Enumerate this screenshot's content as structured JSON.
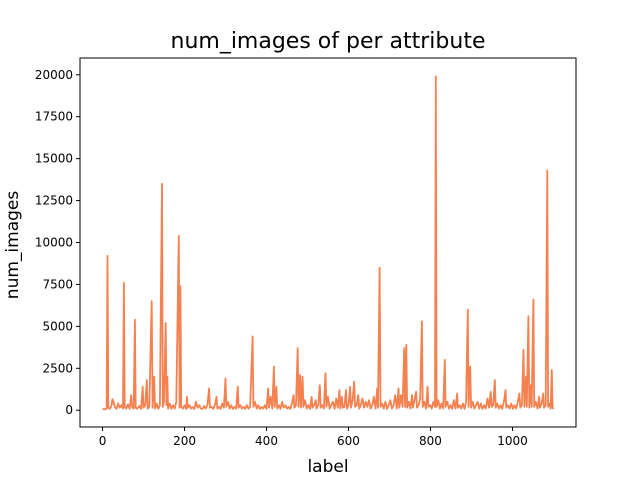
{
  "chart_data": {
    "type": "line",
    "title": "num_images of per attribute",
    "xlabel": "label",
    "ylabel": "num_images",
    "xlim": [
      -55,
      1155
    ],
    "ylim": [
      -1000,
      21000
    ],
    "x_ticks": [
      0,
      200,
      400,
      600,
      800,
      1000
    ],
    "y_ticks": [
      0,
      2500,
      5000,
      7500,
      10000,
      12500,
      15000,
      17500,
      20000
    ],
    "grid": false,
    "legend": "none",
    "series": [
      {
        "color": "#f4814f",
        "points": [
          [
            0,
            80
          ],
          [
            5,
            60
          ],
          [
            10,
            100
          ],
          [
            12,
            9200
          ],
          [
            14,
            150
          ],
          [
            18,
            80
          ],
          [
            22,
            300
          ],
          [
            24,
            650
          ],
          [
            27,
            500
          ],
          [
            30,
            200
          ],
          [
            34,
            80
          ],
          [
            38,
            400
          ],
          [
            42,
            150
          ],
          [
            46,
            300
          ],
          [
            50,
            100
          ],
          [
            52,
            7600
          ],
          [
            54,
            200
          ],
          [
            58,
            100
          ],
          [
            62,
            350
          ],
          [
            66,
            80
          ],
          [
            70,
            900
          ],
          [
            72,
            200
          ],
          [
            76,
            100
          ],
          [
            79,
            5400
          ],
          [
            81,
            150
          ],
          [
            85,
            100
          ],
          [
            90,
            250
          ],
          [
            94,
            80
          ],
          [
            98,
            1400
          ],
          [
            100,
            150
          ],
          [
            104,
            300
          ],
          [
            108,
            1800
          ],
          [
            110,
            100
          ],
          [
            114,
            200
          ],
          [
            120,
            6500
          ],
          [
            122,
            150
          ],
          [
            126,
            2000
          ],
          [
            128,
            100
          ],
          [
            132,
            400
          ],
          [
            136,
            80
          ],
          [
            140,
            300
          ],
          [
            145,
            13500
          ],
          [
            147,
            200
          ],
          [
            150,
            500
          ],
          [
            154,
            5200
          ],
          [
            156,
            300
          ],
          [
            158,
            2000
          ],
          [
            160,
            100
          ],
          [
            164,
            400
          ],
          [
            168,
            80
          ],
          [
            172,
            300
          ],
          [
            176,
            100
          ],
          [
            180,
            500
          ],
          [
            186,
            10400
          ],
          [
            188,
            150
          ],
          [
            190,
            7400
          ],
          [
            192,
            200
          ],
          [
            196,
            100
          ],
          [
            200,
            300
          ],
          [
            204,
            80
          ],
          [
            206,
            800
          ],
          [
            208,
            150
          ],
          [
            212,
            300
          ],
          [
            216,
            100
          ],
          [
            220,
            200
          ],
          [
            224,
            80
          ],
          [
            228,
            500
          ],
          [
            232,
            150
          ],
          [
            236,
            300
          ],
          [
            240,
            100
          ],
          [
            244,
            80
          ],
          [
            248,
            250
          ],
          [
            252,
            100
          ],
          [
            256,
            350
          ],
          [
            260,
            1300
          ],
          [
            262,
            150
          ],
          [
            266,
            200
          ],
          [
            270,
            80
          ],
          [
            274,
            300
          ],
          [
            278,
            800
          ],
          [
            280,
            100
          ],
          [
            284,
            200
          ],
          [
            288,
            80
          ],
          [
            292,
            400
          ],
          [
            296,
            150
          ],
          [
            300,
            1900
          ],
          [
            302,
            200
          ],
          [
            306,
            500
          ],
          [
            310,
            100
          ],
          [
            314,
            300
          ],
          [
            318,
            80
          ],
          [
            322,
            200
          ],
          [
            326,
            100
          ],
          [
            330,
            1400
          ],
          [
            332,
            150
          ],
          [
            336,
            300
          ],
          [
            340,
            100
          ],
          [
            344,
            200
          ],
          [
            348,
            80
          ],
          [
            352,
            300
          ],
          [
            356,
            100
          ],
          [
            360,
            200
          ],
          [
            366,
            4400
          ],
          [
            368,
            200
          ],
          [
            372,
            500
          ],
          [
            376,
            100
          ],
          [
            380,
            300
          ],
          [
            384,
            80
          ],
          [
            388,
            200
          ],
          [
            392,
            100
          ],
          [
            396,
            300
          ],
          [
            400,
            80
          ],
          [
            404,
            1300
          ],
          [
            406,
            150
          ],
          [
            410,
            800
          ],
          [
            414,
            100
          ],
          [
            418,
            2600
          ],
          [
            420,
            200
          ],
          [
            424,
            1400
          ],
          [
            426,
            100
          ],
          [
            430,
            300
          ],
          [
            434,
            80
          ],
          [
            438,
            500
          ],
          [
            442,
            150
          ],
          [
            446,
            300
          ],
          [
            450,
            100
          ],
          [
            454,
            200
          ],
          [
            458,
            80
          ],
          [
            462,
            400
          ],
          [
            466,
            900
          ],
          [
            468,
            150
          ],
          [
            472,
            300
          ],
          [
            476,
            3700
          ],
          [
            478,
            200
          ],
          [
            482,
            2100
          ],
          [
            484,
            150
          ],
          [
            488,
            2000
          ],
          [
            490,
            200
          ],
          [
            494,
            600
          ],
          [
            498,
            100
          ],
          [
            502,
            300
          ],
          [
            506,
            80
          ],
          [
            510,
            800
          ],
          [
            512,
            150
          ],
          [
            516,
            300
          ],
          [
            520,
            600
          ],
          [
            522,
            100
          ],
          [
            526,
            300
          ],
          [
            530,
            1500
          ],
          [
            532,
            150
          ],
          [
            536,
            300
          ],
          [
            540,
            100
          ],
          [
            544,
            2200
          ],
          [
            546,
            200
          ],
          [
            550,
            800
          ],
          [
            554,
            100
          ],
          [
            558,
            300
          ],
          [
            562,
            500
          ],
          [
            566,
            80
          ],
          [
            570,
            700
          ],
          [
            574,
            150
          ],
          [
            578,
            1200
          ],
          [
            580,
            100
          ],
          [
            584,
            800
          ],
          [
            586,
            150
          ],
          [
            590,
            200
          ],
          [
            594,
            1200
          ],
          [
            596,
            100
          ],
          [
            600,
            300
          ],
          [
            604,
            1400
          ],
          [
            606,
            150
          ],
          [
            610,
            600
          ],
          [
            614,
            1700
          ],
          [
            616,
            200
          ],
          [
            620,
            300
          ],
          [
            624,
            900
          ],
          [
            626,
            100
          ],
          [
            630,
            300
          ],
          [
            634,
            700
          ],
          [
            638,
            150
          ],
          [
            642,
            500
          ],
          [
            646,
            200
          ],
          [
            650,
            600
          ],
          [
            654,
            100
          ],
          [
            658,
            300
          ],
          [
            662,
            800
          ],
          [
            666,
            100
          ],
          [
            670,
            1300
          ],
          [
            672,
            150
          ],
          [
            676,
            8500
          ],
          [
            678,
            200
          ],
          [
            682,
            400
          ],
          [
            686,
            100
          ],
          [
            690,
            500
          ],
          [
            694,
            80
          ],
          [
            698,
            300
          ],
          [
            702,
            600
          ],
          [
            706,
            100
          ],
          [
            710,
            300
          ],
          [
            714,
            900
          ],
          [
            718,
            100
          ],
          [
            722,
            1300
          ],
          [
            724,
            150
          ],
          [
            728,
            900
          ],
          [
            732,
            200
          ],
          [
            736,
            3700
          ],
          [
            738,
            200
          ],
          [
            741,
            3900
          ],
          [
            743,
            150
          ],
          [
            747,
            500
          ],
          [
            751,
            100
          ],
          [
            755,
            900
          ],
          [
            757,
            150
          ],
          [
            761,
            600
          ],
          [
            765,
            1100
          ],
          [
            767,
            150
          ],
          [
            771,
            300
          ],
          [
            775,
            700
          ],
          [
            779,
            5300
          ],
          [
            781,
            200
          ],
          [
            785,
            500
          ],
          [
            789,
            100
          ],
          [
            793,
            1400
          ],
          [
            795,
            200
          ],
          [
            799,
            300
          ],
          [
            803,
            100
          ],
          [
            807,
            500
          ],
          [
            811,
            200
          ],
          [
            813,
            19900
          ],
          [
            815,
            200
          ],
          [
            819,
            600
          ],
          [
            823,
            100
          ],
          [
            827,
            400
          ],
          [
            831,
            100
          ],
          [
            835,
            3000
          ],
          [
            837,
            200
          ],
          [
            841,
            500
          ],
          [
            845,
            100
          ],
          [
            849,
            300
          ],
          [
            853,
            80
          ],
          [
            857,
            600
          ],
          [
            861,
            100
          ],
          [
            865,
            1000
          ],
          [
            867,
            150
          ],
          [
            871,
            300
          ],
          [
            875,
            100
          ],
          [
            879,
            400
          ],
          [
            883,
            80
          ],
          [
            887,
            500
          ],
          [
            891,
            6000
          ],
          [
            893,
            200
          ],
          [
            897,
            2600
          ],
          [
            899,
            150
          ],
          [
            903,
            500
          ],
          [
            907,
            100
          ],
          [
            911,
            300
          ],
          [
            915,
            500
          ],
          [
            919,
            100
          ],
          [
            923,
            400
          ],
          [
            927,
            80
          ],
          [
            931,
            300
          ],
          [
            935,
            100
          ],
          [
            939,
            700
          ],
          [
            943,
            150
          ],
          [
            947,
            1100
          ],
          [
            949,
            200
          ],
          [
            953,
            300
          ],
          [
            957,
            1800
          ],
          [
            959,
            150
          ],
          [
            963,
            400
          ],
          [
            967,
            100
          ],
          [
            971,
            300
          ],
          [
            975,
            80
          ],
          [
            979,
            500
          ],
          [
            983,
            1200
          ],
          [
            985,
            150
          ],
          [
            989,
            300
          ],
          [
            993,
            100
          ],
          [
            997,
            400
          ],
          [
            1001,
            80
          ],
          [
            1005,
            300
          ],
          [
            1009,
            100
          ],
          [
            1013,
            500
          ],
          [
            1017,
            1000
          ],
          [
            1019,
            150
          ],
          [
            1023,
            300
          ],
          [
            1027,
            3600
          ],
          [
            1029,
            200
          ],
          [
            1033,
            2000
          ],
          [
            1035,
            200
          ],
          [
            1039,
            5600
          ],
          [
            1041,
            150
          ],
          [
            1045,
            1500
          ],
          [
            1047,
            200
          ],
          [
            1051,
            6600
          ],
          [
            1053,
            200
          ],
          [
            1057,
            500
          ],
          [
            1061,
            100
          ],
          [
            1065,
            800
          ],
          [
            1067,
            150
          ],
          [
            1071,
            400
          ],
          [
            1075,
            1000
          ],
          [
            1077,
            150
          ],
          [
            1081,
            300
          ],
          [
            1085,
            14300
          ],
          [
            1087,
            200
          ],
          [
            1091,
            400
          ],
          [
            1093,
            100
          ],
          [
            1096,
            2400
          ],
          [
            1098,
            150
          ],
          [
            1100,
            80
          ]
        ]
      }
    ]
  }
}
